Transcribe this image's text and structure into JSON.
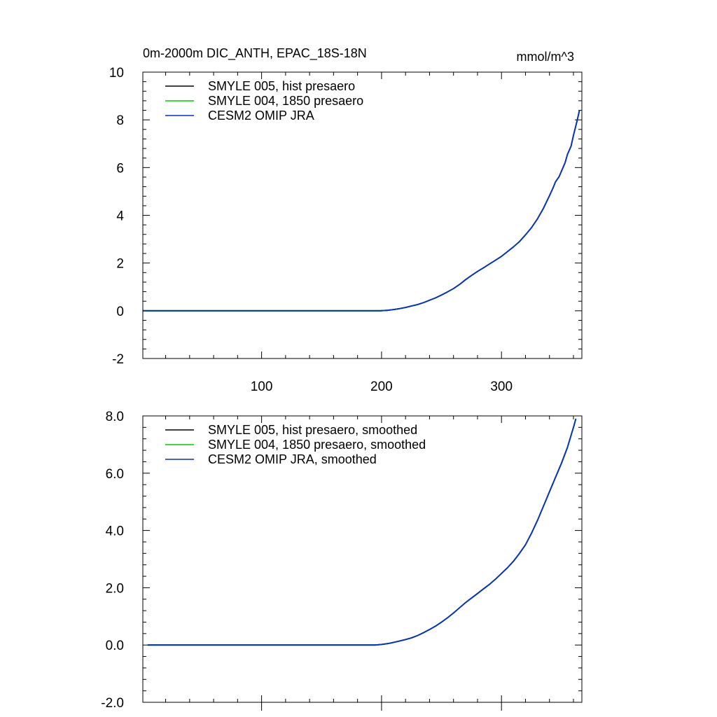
{
  "chart_data": [
    {
      "type": "line",
      "title": "0m-2000m DIC_ANTH, EPAC_18S-18N",
      "units": "mmol/m^3",
      "xlabel": "",
      "ylabel": "",
      "xlim": [
        1,
        367
      ],
      "ylim": [
        -2,
        10
      ],
      "x_ticks": [
        100,
        200,
        300
      ],
      "x_tick_labels": [
        "100",
        "200",
        "300"
      ],
      "y_ticks": [
        -2,
        0,
        2,
        4,
        6,
        8,
        10
      ],
      "y_tick_labels": [
        "-2",
        "0",
        "2",
        "4",
        "6",
        "8",
        "10"
      ],
      "grid": false,
      "legend_position": "top-left",
      "x": [
        1,
        199,
        205,
        210,
        215,
        220,
        225,
        230,
        235,
        240,
        245,
        250,
        255,
        260,
        265,
        270,
        275,
        280,
        285,
        290,
        295,
        300,
        305,
        310,
        315,
        320,
        325,
        330,
        335,
        340,
        343,
        345,
        348,
        350,
        353,
        355,
        358,
        360,
        363,
        365
      ],
      "series": [
        {
          "name": "SMYLE 005, hist presaero",
          "color": "#000000",
          "values": [
            0,
            0,
            0.02,
            0.05,
            0.09,
            0.14,
            0.2,
            0.26,
            0.34,
            0.44,
            0.54,
            0.66,
            0.79,
            0.93,
            1.1,
            1.3,
            1.48,
            1.65,
            1.8,
            1.96,
            2.12,
            2.28,
            2.48,
            2.68,
            2.9,
            3.18,
            3.48,
            3.85,
            4.3,
            4.82,
            5.15,
            5.4,
            5.62,
            5.85,
            6.2,
            6.55,
            6.9,
            7.35,
            7.95,
            8.4
          ]
        },
        {
          "name": "SMYLE 004, 1850 presaero",
          "color": "#00cc00",
          "values": [
            0,
            0,
            0.02,
            0.05,
            0.09,
            0.14,
            0.2,
            0.26,
            0.34,
            0.44,
            0.54,
            0.66,
            0.79,
            0.93,
            1.1,
            1.3,
            1.48,
            1.65,
            1.8,
            1.96,
            2.12,
            2.28,
            2.48,
            2.68,
            2.9,
            3.18,
            3.48,
            3.85,
            4.3,
            4.82,
            5.15,
            5.4,
            5.62,
            5.85,
            6.2,
            6.55,
            6.9,
            7.35,
            7.95,
            8.4
          ]
        },
        {
          "name": "CESM2 OMIP JRA",
          "color": "#0b2cc8",
          "values": [
            0,
            0,
            0.02,
            0.05,
            0.09,
            0.14,
            0.2,
            0.26,
            0.34,
            0.44,
            0.54,
            0.66,
            0.79,
            0.93,
            1.1,
            1.3,
            1.48,
            1.65,
            1.8,
            1.96,
            2.12,
            2.28,
            2.48,
            2.68,
            2.9,
            3.18,
            3.48,
            3.85,
            4.3,
            4.82,
            5.15,
            5.4,
            5.62,
            5.85,
            6.2,
            6.55,
            6.9,
            7.35,
            7.95,
            8.4
          ]
        }
      ]
    },
    {
      "type": "line",
      "title": "",
      "xlabel": "",
      "ylabel": "",
      "xlim": [
        1,
        367
      ],
      "ylim": [
        -2,
        8
      ],
      "x_ticks": [
        100,
        200,
        300
      ],
      "x_tick_labels": [
        "",
        "",
        ""
      ],
      "y_ticks": [
        -2,
        0,
        2,
        4,
        6,
        8
      ],
      "y_tick_labels": [
        "-2.0",
        "0.0",
        "2.0",
        "4.0",
        "6.0",
        "8.0"
      ],
      "grid": false,
      "legend_position": "top-left",
      "x": [
        5,
        195,
        200,
        205,
        210,
        215,
        220,
        225,
        230,
        235,
        240,
        245,
        250,
        255,
        260,
        265,
        270,
        275,
        280,
        285,
        290,
        295,
        300,
        305,
        310,
        315,
        320,
        325,
        330,
        335,
        340,
        345,
        350,
        355,
        360,
        362
      ],
      "series": [
        {
          "name": "SMYLE 005, hist presaero, smoothed",
          "color": "#000000",
          "values": [
            0,
            0,
            0.02,
            0.05,
            0.09,
            0.14,
            0.19,
            0.25,
            0.33,
            0.43,
            0.54,
            0.66,
            0.8,
            0.95,
            1.12,
            1.3,
            1.48,
            1.64,
            1.8,
            1.96,
            2.12,
            2.3,
            2.5,
            2.7,
            2.93,
            3.2,
            3.5,
            3.9,
            4.35,
            4.85,
            5.35,
            5.85,
            6.35,
            6.9,
            7.6,
            7.9
          ]
        },
        {
          "name": "SMYLE 004, 1850 presaero, smoothed",
          "color": "#00cc00",
          "values": [
            0,
            0,
            0.02,
            0.05,
            0.09,
            0.14,
            0.19,
            0.25,
            0.33,
            0.43,
            0.54,
            0.66,
            0.8,
            0.95,
            1.12,
            1.3,
            1.48,
            1.64,
            1.8,
            1.96,
            2.12,
            2.3,
            2.5,
            2.7,
            2.93,
            3.2,
            3.5,
            3.9,
            4.35,
            4.85,
            5.35,
            5.85,
            6.35,
            6.9,
            7.6,
            7.9
          ]
        },
        {
          "name": "CESM2 OMIP JRA, smoothed",
          "color": "#0b2cc8",
          "values": [
            0,
            0,
            0.02,
            0.05,
            0.09,
            0.14,
            0.19,
            0.25,
            0.33,
            0.43,
            0.54,
            0.66,
            0.8,
            0.95,
            1.12,
            1.3,
            1.48,
            1.64,
            1.8,
            1.96,
            2.12,
            2.3,
            2.5,
            2.7,
            2.93,
            3.2,
            3.5,
            3.9,
            4.35,
            4.85,
            5.35,
            5.85,
            6.35,
            6.9,
            7.6,
            7.9
          ]
        }
      ]
    }
  ]
}
